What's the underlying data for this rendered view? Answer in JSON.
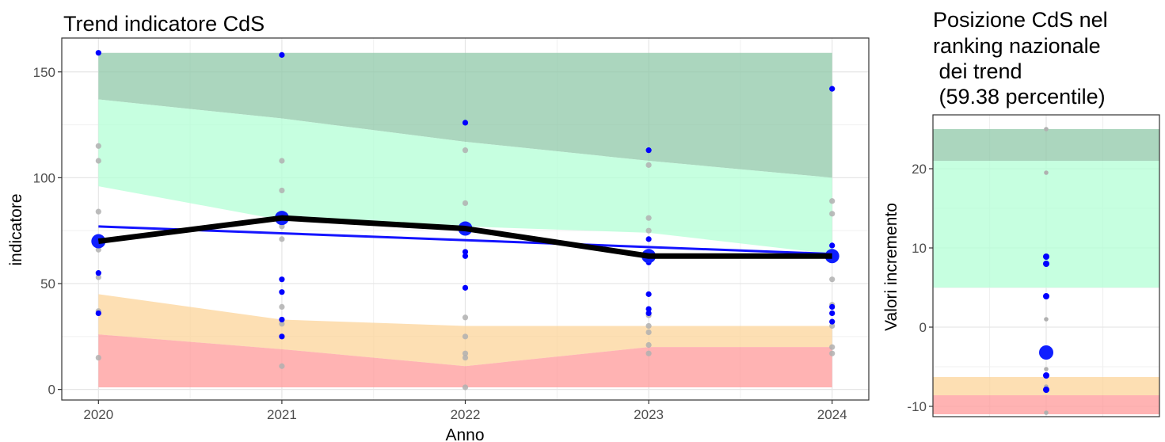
{
  "chart_data": [
    {
      "type": "line",
      "title": "Trend indicatore CdS",
      "xlabel": "Anno",
      "ylabel": "indicatore",
      "x": [
        2020,
        2021,
        2022,
        2023,
        2024
      ],
      "xlim": [
        2019.8,
        2024.2
      ],
      "ylim": [
        -5,
        166
      ],
      "y_ticks": [
        0,
        50,
        100,
        150
      ],
      "grid": true,
      "bands": [
        {
          "name": "top",
          "color": "#8fc8a8",
          "lower": [
            137,
            128,
            117,
            108,
            100
          ],
          "upper": [
            159,
            159,
            159,
            159,
            159
          ]
        },
        {
          "name": "high",
          "color": "#b3ffd6",
          "lower": [
            96,
            80,
            77,
            74,
            64
          ],
          "upper": [
            137,
            128,
            117,
            108,
            100
          ]
        },
        {
          "name": "low",
          "color": "#fcd49a",
          "lower": [
            26,
            19,
            11,
            20,
            20
          ],
          "upper": [
            45,
            33,
            30,
            30,
            30
          ]
        },
        {
          "name": "bottom",
          "color": "#ff9a9a",
          "lower": [
            1,
            1,
            1,
            1,
            1
          ],
          "upper": [
            26,
            19,
            11,
            20,
            20
          ]
        }
      ],
      "series": [
        {
          "values": [
            70,
            81,
            76,
            63,
            63
          ],
          "color": "#000000"
        }
      ],
      "trend_line": {
        "start": 77,
        "end": 64,
        "color": "#1414ff"
      },
      "highlight_points": [
        70,
        81,
        76,
        63,
        63
      ],
      "blue_points": [
        [
          159,
          55,
          36
        ],
        [
          158,
          52,
          46,
          33,
          25
        ],
        [
          126,
          65,
          63,
          48
        ],
        [
          113,
          71,
          45,
          38,
          36,
          60
        ],
        [
          142,
          68,
          39,
          36,
          32
        ]
      ],
      "grey_points": [
        [
          115,
          108,
          84,
          68,
          66,
          53,
          37,
          36,
          15
        ],
        [
          108,
          94,
          77,
          71,
          39,
          31,
          25,
          11
        ],
        [
          113,
          88,
          78,
          74,
          34,
          25,
          17,
          15,
          1
        ],
        [
          106,
          81,
          75,
          35,
          30,
          27,
          21,
          17
        ],
        [
          89,
          83,
          65,
          52,
          40,
          30,
          20,
          17
        ]
      ]
    },
    {
      "type": "scatter",
      "title_lines": [
        "Posizione CdS nel",
        "ranking nazionale",
        " dei trend",
        " (59.38 percentile)"
      ],
      "ylabel": "Valori incremento",
      "ylim": [
        -11,
        25
      ],
      "y_ticks": [
        -10,
        0,
        10,
        20
      ],
      "grid": true,
      "bands": [
        {
          "name": "top",
          "color": "#8fc8a8",
          "lower": 21,
          "upper": 25
        },
        {
          "name": "high",
          "color": "#b3ffd6",
          "lower": 5,
          "upper": 21
        },
        {
          "name": "low",
          "color": "#fcd49a",
          "lower": -8.6,
          "upper": -6.3
        },
        {
          "name": "bottom",
          "color": "#ff9a9a",
          "lower": -11,
          "upper": -8.6
        }
      ],
      "blue_points": [
        8.9,
        8.0,
        3.9,
        -6.1,
        -7.9
      ],
      "grey_points": [
        25,
        19.5,
        1.0,
        -5.3,
        -7.5,
        -8.0,
        -10.8
      ],
      "highlight_point": -3.2
    }
  ]
}
